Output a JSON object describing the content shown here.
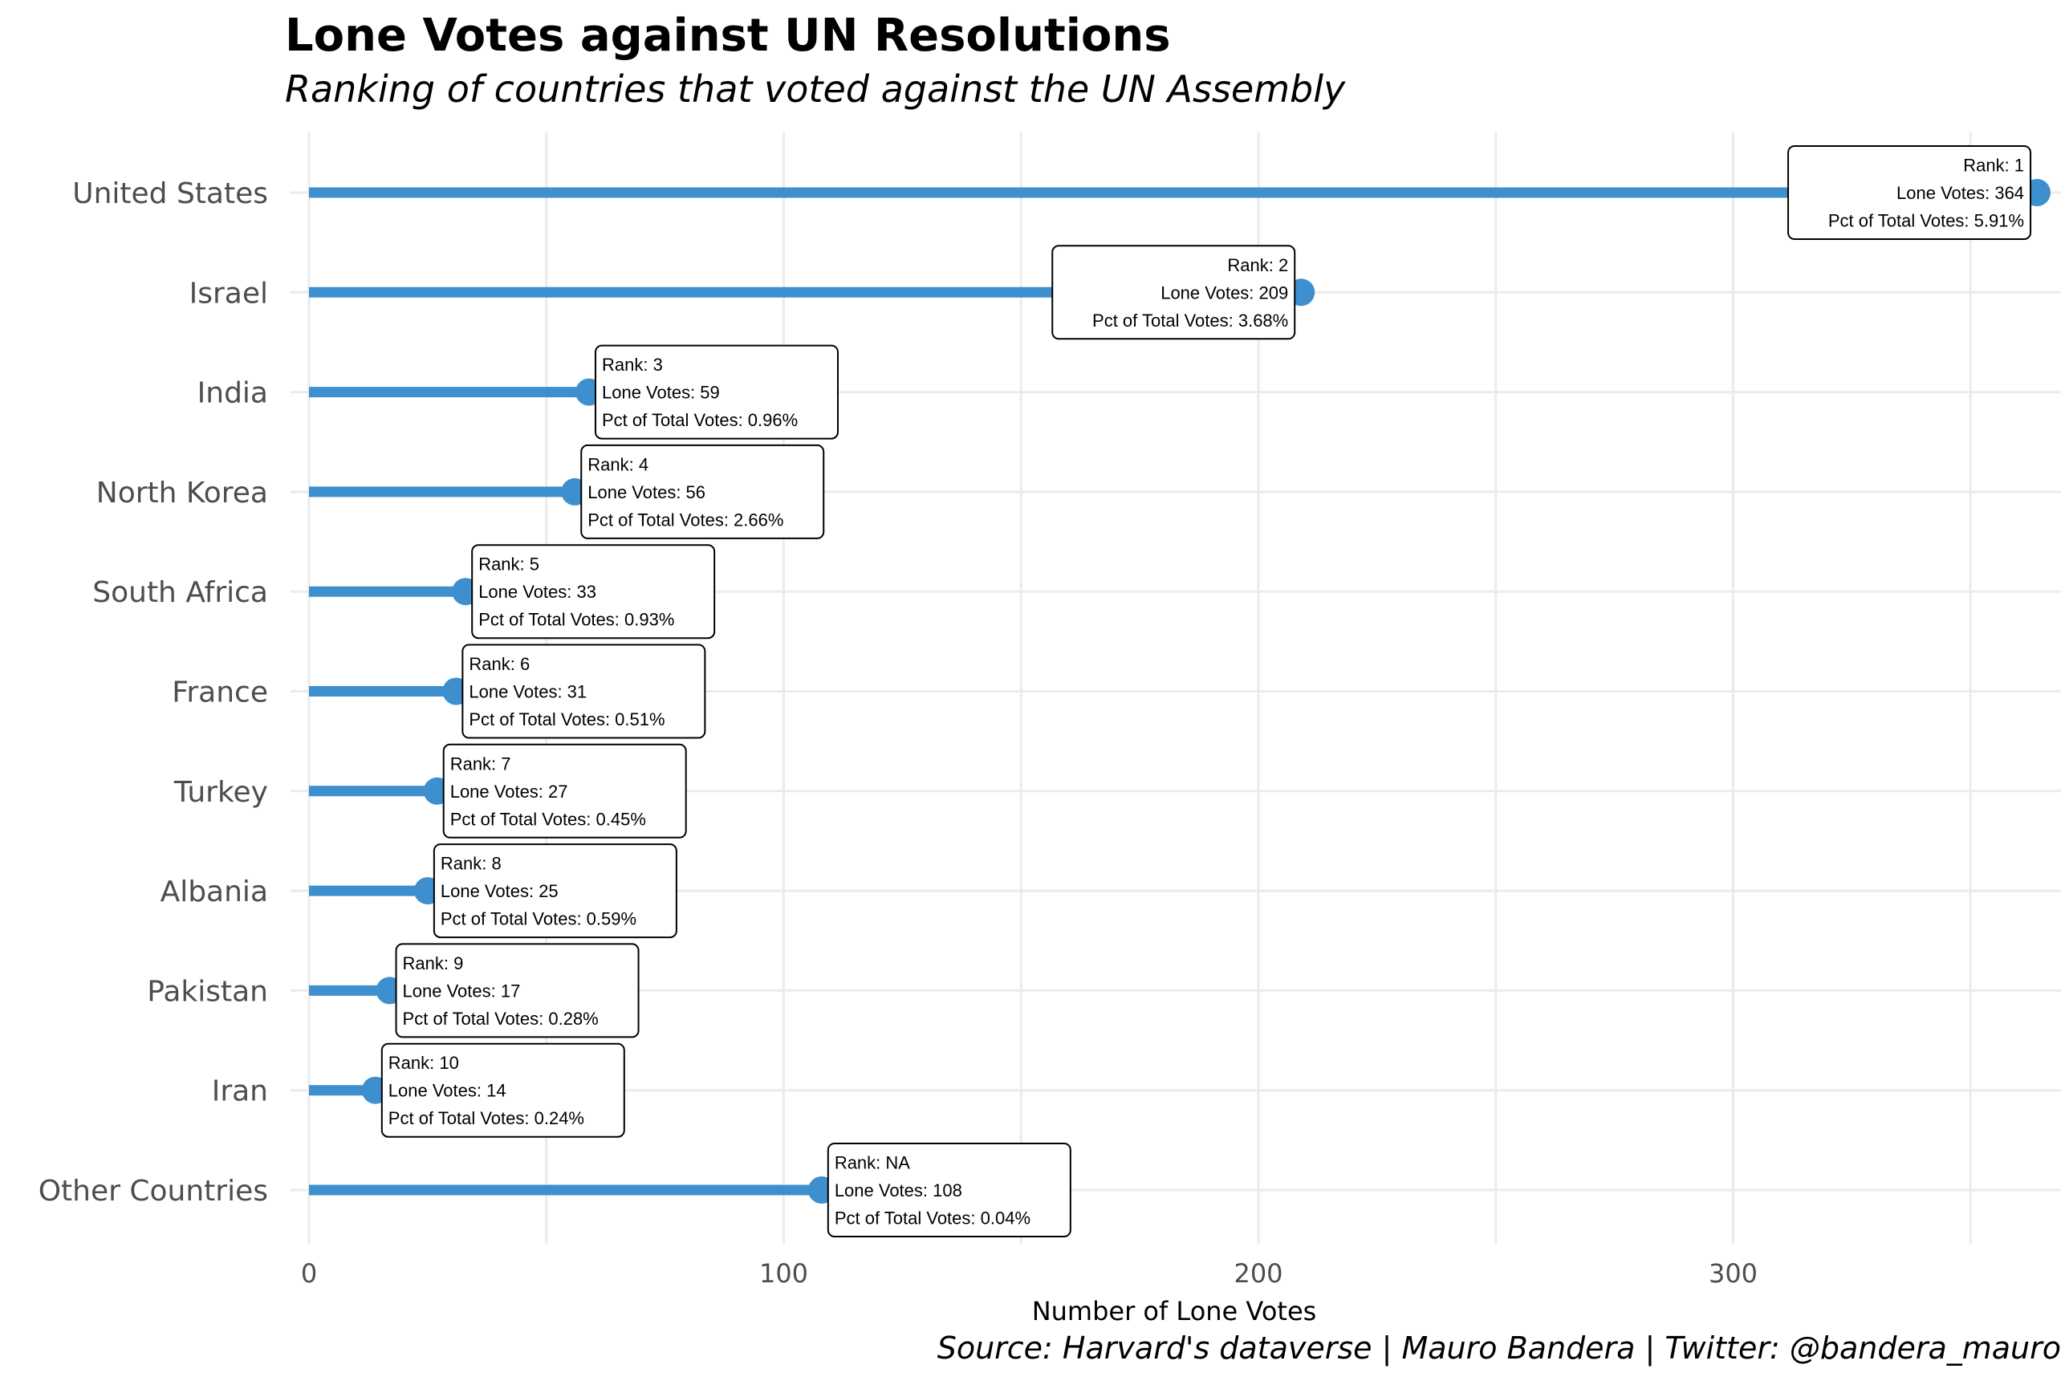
{
  "chart_data": {
    "type": "bar",
    "orientation": "horizontal",
    "title": "Lone Votes against UN Resolutions",
    "subtitle": "Ranking of countries that voted against the UN Assembly",
    "caption": "Source: Harvard's dataverse | Mauro Bandera | Twitter: @bandera_mauro",
    "xlabel": "Number of Lone Votes",
    "ylabel": "",
    "xlim": [
      0,
      370
    ],
    "x_ticks": [
      0,
      100,
      200,
      300
    ],
    "grid": true,
    "accent_color": "#3d8fce",
    "categories": [
      "United States",
      "Israel",
      "India",
      "North Korea",
      "South Africa",
      "France",
      "Turkey",
      "Albania",
      "Pakistan",
      "Iran",
      "Other Countries"
    ],
    "values": [
      364,
      209,
      59,
      56,
      33,
      31,
      27,
      25,
      17,
      14,
      108
    ],
    "labels": [
      {
        "rank": "Rank: 1",
        "votes": "Lone Votes: 364",
        "pct": "Pct of Total Votes: 5.91%"
      },
      {
        "rank": "Rank: 2",
        "votes": "Lone Votes: 209",
        "pct": "Pct of Total Votes: 3.68%"
      },
      {
        "rank": "Rank: 3",
        "votes": "Lone Votes: 59",
        "pct": "Pct of Total Votes: 0.96%"
      },
      {
        "rank": "Rank: 4",
        "votes": "Lone Votes: 56",
        "pct": "Pct of Total Votes: 2.66%"
      },
      {
        "rank": "Rank: 5",
        "votes": "Lone Votes: 33",
        "pct": "Pct of Total Votes: 0.93%"
      },
      {
        "rank": "Rank: 6",
        "votes": "Lone Votes: 31",
        "pct": "Pct of Total Votes: 0.51%"
      },
      {
        "rank": "Rank: 7",
        "votes": "Lone Votes: 27",
        "pct": "Pct of Total Votes: 0.45%"
      },
      {
        "rank": "Rank: 8",
        "votes": "Lone Votes: 25",
        "pct": "Pct of Total Votes: 0.59%"
      },
      {
        "rank": "Rank: 9",
        "votes": "Lone Votes: 17",
        "pct": "Pct of Total Votes: 0.28%"
      },
      {
        "rank": "Rank: 10",
        "votes": "Lone Votes: 14",
        "pct": "Pct of Total Votes: 0.24%"
      },
      {
        "rank": "Rank: NA",
        "votes": "Lone Votes: 108",
        "pct": "Pct of Total Votes: 0.04%"
      }
    ]
  }
}
